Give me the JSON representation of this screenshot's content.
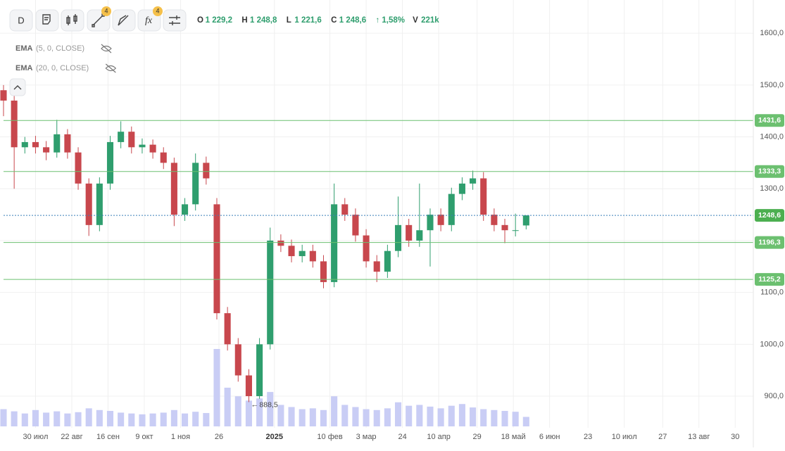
{
  "toolbar": {
    "interval": "D",
    "badges": [
      "4",
      "4"
    ],
    "ohlc": [
      {
        "key": "O",
        "value": "1 229,2"
      },
      {
        "key": "H",
        "value": "1 248,8"
      },
      {
        "key": "L",
        "value": "1 221,6"
      },
      {
        "key": "C",
        "value": "1 248,6"
      }
    ],
    "change": "↑ 1,58%",
    "volume_key": "V",
    "volume": "221k",
    "indicators": [
      {
        "name": "EMA",
        "params": "(5, 0, CLOSE)"
      },
      {
        "name": "EMA",
        "params": "(20, 0, CLOSE)"
      }
    ]
  },
  "chart_data": {
    "type": "candlestick",
    "x": [
      0,
      5,
      10,
      15,
      20,
      25,
      30,
      35,
      40,
      45,
      50,
      55,
      60,
      65,
      70,
      75,
      80,
      85,
      90,
      95,
      100,
      105,
      110,
      115,
      120,
      125,
      130,
      135,
      140,
      145,
      150,
      155,
      160,
      165,
      170,
      175,
      180,
      185,
      190,
      195,
      200,
      205,
      210,
      215,
      220,
      225,
      230,
      235,
      240,
      245
    ],
    "open": [
      1490,
      1470,
      1380,
      1390,
      1380,
      1370,
      1405,
      1370,
      1310,
      1230,
      1310,
      1390,
      1410,
      1380,
      1385,
      1370,
      1350,
      1250,
      1270,
      1350,
      1270,
      1060,
      1000,
      940,
      900,
      1000,
      1200,
      1190,
      1170,
      1180,
      1160,
      1120,
      1270,
      1250,
      1210,
      1160,
      1140,
      1180,
      1230,
      1200,
      1220,
      1250,
      1230,
      1290,
      1310,
      1320,
      1250,
      1230,
      1220,
      1229.2
    ],
    "high": [
      1500,
      1480,
      1400,
      1402,
      1392,
      1433,
      1415,
      1380,
      1320,
      1322,
      1402,
      1430,
      1420,
      1397,
      1395,
      1380,
      1360,
      1282,
      1368,
      1362,
      1282,
      1072,
      1012,
      952,
      1012,
      1225,
      1212,
      1202,
      1192,
      1192,
      1172,
      1310,
      1282,
      1262,
      1222,
      1172,
      1192,
      1285,
      1242,
      1310,
      1262,
      1262,
      1302,
      1322,
      1335,
      1332,
      1262,
      1242,
      1252,
      1248.8
    ],
    "low": [
      1440,
      1300,
      1368,
      1368,
      1355,
      1360,
      1358,
      1298,
      1209,
      1218,
      1298,
      1378,
      1368,
      1368,
      1358,
      1338,
      1228,
      1238,
      1258,
      1308,
      1048,
      988,
      928,
      888.5,
      895,
      990,
      1178,
      1158,
      1158,
      1148,
      1108,
      1110,
      1238,
      1198,
      1148,
      1120,
      1128,
      1168,
      1188,
      1188,
      1150,
      1218,
      1218,
      1278,
      1298,
      1238,
      1218,
      1195,
      1208,
      1221.6
    ],
    "close": [
      1470,
      1380,
      1390,
      1380,
      1370,
      1405,
      1370,
      1310,
      1230,
      1310,
      1390,
      1410,
      1380,
      1385,
      1370,
      1350,
      1250,
      1270,
      1350,
      1320,
      1060,
      1000,
      940,
      900,
      1000,
      1200,
      1190,
      1170,
      1180,
      1160,
      1120,
      1270,
      1250,
      1210,
      1160,
      1140,
      1180,
      1230,
      1200,
      1220,
      1250,
      1230,
      1290,
      1310,
      1320,
      1250,
      1230,
      1220,
      1220,
      1248.6
    ],
    "volume": [
      400,
      350,
      300,
      380,
      320,
      350,
      300,
      330,
      420,
      380,
      360,
      320,
      300,
      280,
      300,
      320,
      380,
      300,
      340,
      310,
      1800,
      900,
      700,
      600,
      650,
      800,
      500,
      450,
      400,
      420,
      380,
      700,
      500,
      450,
      400,
      380,
      420,
      560,
      480,
      500,
      460,
      420,
      480,
      520,
      440,
      400,
      380,
      360,
      340,
      221
    ],
    "up_color": "#2f9e6e",
    "down_color": "#c8474d",
    "volume_color": "#c9cdf5",
    "xlim": [
      0,
      351.5
    ],
    "xticks": [
      {
        "value": 15,
        "label": "30 июл"
      },
      {
        "value": 32,
        "label": "22 авг"
      },
      {
        "value": 49,
        "label": "16 сен"
      },
      {
        "value": 66,
        "label": "9 окт"
      },
      {
        "value": 83,
        "label": "1 ноя"
      },
      {
        "value": 101,
        "label": "26"
      },
      {
        "value": 127,
        "label": "2025"
      },
      {
        "value": 153,
        "label": "10 фев"
      },
      {
        "value": 170,
        "label": "3 мар"
      },
      {
        "value": 187,
        "label": "24"
      },
      {
        "value": 204,
        "label": "10 апр"
      },
      {
        "value": 222,
        "label": "29"
      },
      {
        "value": 239,
        "label": "18 май"
      },
      {
        "value": 256,
        "label": "6 июн"
      },
      {
        "value": 274,
        "label": "23"
      },
      {
        "value": 291,
        "label": "10 июл"
      },
      {
        "value": 309,
        "label": "27"
      },
      {
        "value": 326,
        "label": "13 авг"
      },
      {
        "value": 343,
        "label": "30"
      }
    ],
    "ylim": [
      801,
      1664
    ],
    "yticks": [
      {
        "value": 900,
        "label": "900,0"
      },
      {
        "value": 1000,
        "label": "1000,0"
      },
      {
        "value": 1100,
        "label": "1100,0"
      },
      {
        "value": 1200,
        "label": "1200,0"
      },
      {
        "value": 1300,
        "label": "1300,0"
      },
      {
        "value": 1400,
        "label": "1400,0"
      },
      {
        "value": 1500,
        "label": "1500,0"
      },
      {
        "value": 1600,
        "label": "1600,0"
      }
    ],
    "levels": [
      {
        "value": 1431.6,
        "label": "1431,6"
      },
      {
        "value": 1333.3,
        "label": "1333,3"
      },
      {
        "value": 1196.3,
        "label": "1196,3"
      },
      {
        "value": 1125.2,
        "label": "1125,2"
      }
    ],
    "level_color": "#6cc070",
    "last_price": {
      "value": 1248.6,
      "label": "1248,6"
    },
    "low_annotation": {
      "x": 115,
      "value": 888.5,
      "label": "888,5"
    },
    "grid": true
  }
}
